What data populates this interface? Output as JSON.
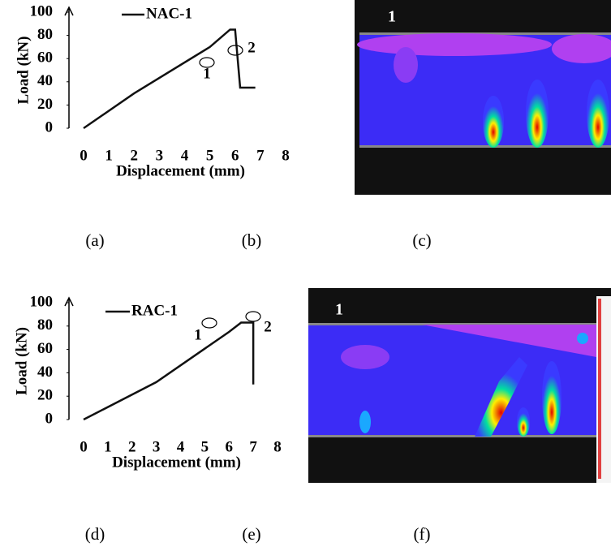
{
  "chart_data": [
    {
      "type": "line",
      "xlabel": "Displacement (mm)",
      "ylabel": "Load (kN)",
      "x": [
        0,
        2,
        5,
        5.8,
        6,
        6.2,
        6.8
      ],
      "series": [
        {
          "name": "NAC-1",
          "color": "#111111",
          "values": [
            0,
            30,
            70,
            85,
            85,
            35,
            35
          ]
        }
      ],
      "xlim": [
        0,
        8
      ],
      "ylim": [
        0,
        100
      ],
      "xticks": [
        0,
        1,
        2,
        3,
        4,
        5,
        6,
        7,
        8
      ],
      "yticks": [
        0,
        20,
        40,
        60,
        80,
        100
      ],
      "annotations": [
        "1",
        "2"
      ]
    },
    {
      "type": "line",
      "xlabel": "Displacement (mm)",
      "ylabel": "Load (kN)",
      "x": [
        0,
        3,
        6,
        6.5,
        7,
        7
      ],
      "series": [
        {
          "name": "RAC-1",
          "color": "#111111",
          "values": [
            0,
            32,
            75,
            83,
            83,
            30
          ]
        }
      ],
      "xlim": [
        0,
        8
      ],
      "ylim": [
        0,
        100
      ],
      "xticks": [
        0,
        1,
        2,
        3,
        4,
        5,
        6,
        7,
        8
      ],
      "yticks": [
        0,
        20,
        40,
        60,
        80,
        100
      ],
      "annotations": [
        "1",
        "2"
      ]
    }
  ],
  "images": [
    {
      "label": "1"
    },
    {
      "label": "1"
    }
  ],
  "panel_labels": [
    "(a)",
    "(b)",
    "(c)",
    "(d)",
    "(e)",
    "(f)"
  ]
}
